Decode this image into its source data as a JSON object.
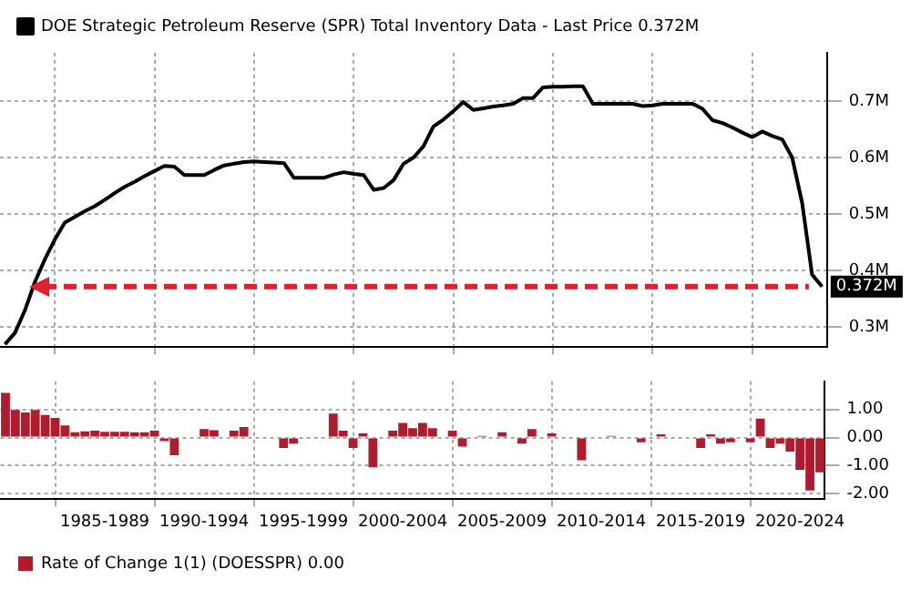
{
  "chart_data": [
    {
      "type": "line",
      "legend": "top left",
      "grid": true,
      "tick_labels": "y",
      "marker": "none",
      "line_style": "solid",
      "categories": [
        null,
        null,
        null,
        null,
        null,
        null,
        null,
        null,
        null,
        null,
        null,
        null,
        null,
        null,
        null,
        null,
        null,
        null,
        null,
        null,
        null,
        null,
        null,
        null,
        null,
        null,
        null,
        null,
        null,
        null,
        null,
        null,
        null,
        null,
        null,
        null,
        null,
        null,
        null,
        null,
        null,
        null,
        null,
        null,
        null,
        null,
        null,
        null,
        null,
        null,
        null,
        null,
        null,
        null,
        null,
        null,
        null,
        null,
        null,
        null,
        null,
        null,
        null,
        null,
        null,
        null,
        null,
        null,
        null,
        null,
        null,
        null,
        null,
        null,
        null,
        null,
        null,
        null,
        null,
        null,
        null,
        null,
        null
      ],
      "series": [
        {
          "name": "DOE Strategic Petroleum Reserve (SPR) Total Inventory Data - Last Price 0.372M",
          "color": "#000000",
          "values": [
            0.27,
            0.29,
            0.33,
            0.38,
            0.42,
            0.455,
            0.485,
            0.495,
            0.505,
            0.514,
            0.525,
            0.537,
            0.548,
            0.557,
            0.567,
            0.576,
            0.585,
            0.584,
            0.569,
            0.569,
            0.569,
            0.578,
            0.586,
            0.589,
            0.592,
            0.593,
            0.592,
            0.591,
            0.59,
            0.564,
            0.564,
            0.564,
            0.564,
            0.57,
            0.574,
            0.571,
            0.569,
            0.543,
            0.546,
            0.56,
            0.589,
            0.6,
            0.62,
            0.655,
            0.667,
            0.682,
            0.698,
            0.684,
            0.687,
            0.69,
            0.692,
            0.695,
            0.705,
            0.705,
            0.724,
            0.725,
            0.725,
            0.726,
            0.726,
            0.695,
            0.695,
            0.695,
            0.695,
            0.695,
            0.691,
            0.692,
            0.695,
            0.695,
            0.695,
            0.695,
            0.686,
            0.666,
            0.661,
            0.653,
            0.644,
            0.636,
            0.646,
            0.638,
            0.632,
            0.6,
            0.52,
            0.393,
            0.372
          ]
        }
      ],
      "ylim": [
        0.265,
        0.785
      ],
      "yticks": [
        {
          "value": 0.3,
          "label": "0.3M"
        },
        {
          "value": 0.4,
          "label": "0.4M"
        },
        {
          "value": 0.5,
          "label": "0.5M"
        },
        {
          "value": 0.6,
          "label": "0.6M"
        },
        {
          "value": 0.7,
          "label": "0.7M"
        }
      ],
      "ref_lines": [
        {
          "axis": "y",
          "value": 0.372,
          "label": "0.372M",
          "color": "#e0202a",
          "line_style": "dashed"
        }
      ]
    },
    {
      "type": "bar",
      "legend": "bottom left",
      "grid": true,
      "categories": [
        null,
        null,
        null,
        null,
        null,
        null,
        null,
        null,
        null,
        null,
        "1985-1989",
        null,
        null,
        null,
        null,
        null,
        null,
        null,
        null,
        null,
        "1990-1994",
        null,
        null,
        null,
        null,
        null,
        null,
        null,
        null,
        null,
        "1995-1999",
        null,
        null,
        null,
        null,
        null,
        null,
        null,
        null,
        null,
        "2000-2004",
        null,
        null,
        null,
        null,
        null,
        null,
        null,
        null,
        null,
        "2005-2009",
        null,
        null,
        null,
        null,
        null,
        null,
        null,
        null,
        null,
        "2010-2014",
        null,
        null,
        null,
        null,
        null,
        null,
        null,
        null,
        null,
        "2015-2019",
        null,
        null,
        null,
        null,
        null,
        null,
        null,
        null,
        null,
        "2020-2024",
        null,
        null
      ],
      "series": [
        {
          "name": "Rate of Change 1(1) (DOESSPR) 0.00",
          "color": "#b01c2e",
          "values": [
            1.59,
            0.98,
            0.89,
            0.98,
            0.8,
            0.7,
            0.43,
            0.19,
            0.22,
            0.24,
            0.2,
            0.2,
            0.2,
            0.19,
            0.19,
            0.24,
            -0.13,
            -0.63,
            null,
            null,
            0.3,
            0.26,
            null,
            0.24,
            0.37,
            null,
            null,
            null,
            -0.37,
            -0.22,
            null,
            null,
            null,
            0.85,
            0.24,
            -0.37,
            0.15,
            -1.06,
            null,
            0.24,
            0.52,
            0.33,
            0.52,
            0.33,
            null,
            0.24,
            -0.32,
            null,
            0.06,
            null,
            0.19,
            null,
            -0.22,
            0.3,
            null,
            0.15,
            null,
            null,
            -0.81,
            null,
            null,
            0.06,
            null,
            null,
            -0.17,
            null,
            0.11,
            null,
            null,
            null,
            -0.37,
            0.11,
            -0.22,
            -0.17,
            null,
            -0.17,
            0.67,
            -0.37,
            -0.22,
            -0.5,
            -1.15,
            -1.89,
            -1.24
          ]
        }
      ],
      "ylim": [
        -2.2,
        2.0
      ],
      "yticks": [
        {
          "value": -2,
          "label": "-2.00"
        },
        {
          "value": -1,
          "label": "-1.00"
        },
        {
          "value": 0,
          "label": "0.00"
        },
        {
          "value": 1,
          "label": "1.00"
        }
      ]
    }
  ]
}
